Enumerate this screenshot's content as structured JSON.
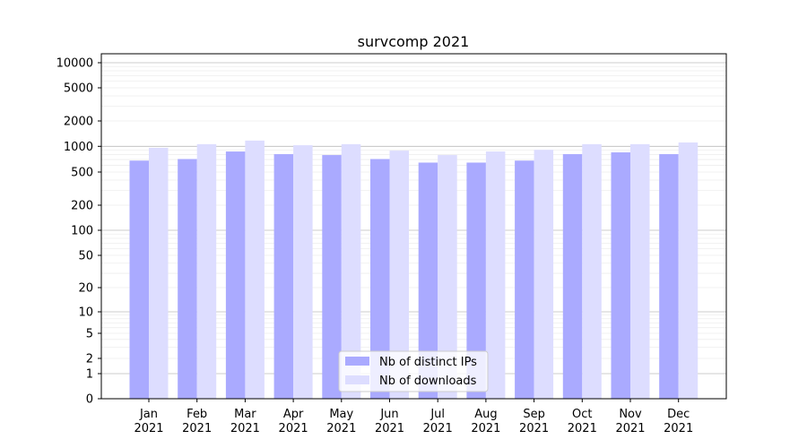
{
  "chart_data": {
    "type": "bar",
    "title": "survcomp 2021",
    "xlabel": "",
    "ylabel": "",
    "yscale": "symlog",
    "ylim": [
      0,
      12800
    ],
    "yticks": [
      0,
      1,
      2,
      5,
      10,
      20,
      50,
      100,
      200,
      500,
      1000,
      2000,
      5000,
      10000
    ],
    "grid": true,
    "legend_position": "bottom-center",
    "categories": [
      "Jan\n2021",
      "Feb\n2021",
      "Mar\n2021",
      "Apr\n2021",
      "May\n2021",
      "Jun\n2021",
      "Jul\n2021",
      "Aug\n2021",
      "Sep\n2021",
      "Oct\n2021",
      "Nov\n2021",
      "Dec\n2021"
    ],
    "series": [
      {
        "name": "Nb of distinct IPs",
        "color": "#aaaaff",
        "values": [
          680,
          710,
          870,
          810,
          790,
          710,
          645,
          645,
          680,
          810,
          850,
          810
        ]
      },
      {
        "name": "Nb of downloads",
        "color": "#ddddff",
        "values": [
          960,
          1060,
          1170,
          1030,
          1060,
          890,
          790,
          870,
          910,
          1060,
          1060,
          1110
        ]
      }
    ]
  }
}
